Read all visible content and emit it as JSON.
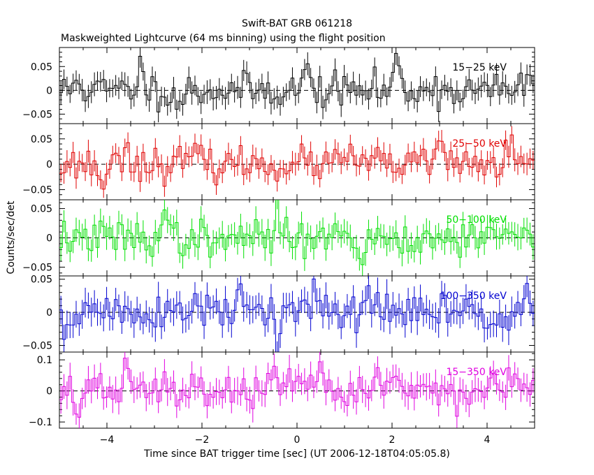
{
  "title": "Swift-BAT GRB 061218",
  "subtitle": "Maskweighted Lightcurve (64 ms binning) using the flight position",
  "ylabel": "Counts/sec/det",
  "xlabel": "Time since BAT trigger time [sec] (UT 2006-12-18T04:05:05.8)",
  "chart_data": {
    "type": "line",
    "title": "Swift-BAT GRB 061218",
    "subtitle": "Maskweighted Lightcurve (64 ms binning) using the flight position",
    "xlabel": "Time since BAT trigger time [sec] (UT 2006-12-18T04:05:05.8)",
    "ylabel": "Counts/sec/det",
    "xlim": [
      -5,
      5
    ],
    "x_ticks": [
      -4,
      -2,
      0,
      2,
      4
    ],
    "x_tick_labels": [
      "−4",
      "−2",
      "0",
      "2",
      "4"
    ],
    "bin_width_sec": 0.064,
    "series": [
      {
        "name": "15−25 keV",
        "color": "#000000",
        "ylim": [
          -0.07,
          0.09
        ],
        "y_ticks": [
          -0.05,
          0,
          0.05
        ],
        "y_tick_labels": [
          "−0.05",
          "0",
          "0.05"
        ],
        "amplitude": 0.018,
        "error": 0.022,
        "features": [
          [
            0.2,
            0.045
          ],
          [
            2.1,
            0.06
          ],
          [
            2.6,
            0.05
          ],
          [
            -3.3,
            0.05
          ],
          [
            -4.6,
            0.03
          ],
          [
            4.9,
            0.04
          ],
          [
            2.55,
            -0.04
          ],
          [
            -2.5,
            -0.03
          ]
        ],
        "seed": 11
      },
      {
        "name": "25−50 keV",
        "color": "#e00000",
        "ylim": [
          -0.07,
          0.08
        ],
        "y_ticks": [
          -0.05,
          0,
          0.05
        ],
        "y_tick_labels": [
          "−0.05",
          "0",
          "0.05"
        ],
        "amplitude": 0.016,
        "error": 0.02,
        "features": [
          [
            -3.6,
            0.05
          ],
          [
            3.0,
            0.05
          ],
          [
            -4.1,
            -0.035
          ],
          [
            -2.2,
            0.03
          ],
          [
            1.1,
            0.03
          ],
          [
            4.5,
            0.03
          ]
        ],
        "seed": 23
      },
      {
        "name": "50−100 keV",
        "color": "#00e000",
        "ylim": [
          -0.065,
          0.065
        ],
        "y_ticks": [
          -0.05,
          0,
          0.05
        ],
        "y_tick_labels": [
          "−0.05",
          "0",
          "0.05"
        ],
        "amplitude": 0.015,
        "error": 0.02,
        "features": [
          [
            -2.8,
            0.04
          ],
          [
            4.1,
            0.04
          ],
          [
            -0.4,
            0.035
          ],
          [
            1.35,
            -0.035
          ],
          [
            -1.8,
            -0.03
          ],
          [
            0.5,
            0.03
          ]
        ],
        "seed": 37
      },
      {
        "name": "100−350 keV",
        "color": "#0000d0",
        "ylim": [
          -0.06,
          0.055
        ],
        "y_ticks": [
          -0.05,
          0,
          0.05
        ],
        "y_tick_labels": [
          "−0.05",
          "0",
          "0.05"
        ],
        "amplitude": 0.015,
        "error": 0.02,
        "features": [
          [
            4.8,
            0.04
          ],
          [
            -0.4,
            -0.045
          ],
          [
            -4.9,
            -0.03
          ],
          [
            -1.2,
            0.03
          ],
          [
            0.4,
            0.03
          ],
          [
            1.5,
            0.025
          ]
        ],
        "seed": 51
      },
      {
        "name": "15−350 keV",
        "color": "#e000e0",
        "ylim": [
          -0.12,
          0.125
        ],
        "y_ticks": [
          -0.1,
          0,
          0.1
        ],
        "y_tick_labels": [
          "−0.1",
          "0",
          "0.1"
        ],
        "amplitude": 0.028,
        "error": 0.04,
        "features": [
          [
            1.7,
            0.07
          ],
          [
            2.0,
            0.06
          ],
          [
            -3.6,
            0.06
          ],
          [
            0.5,
            0.05
          ],
          [
            4.8,
            0.05
          ],
          [
            -4.6,
            -0.05
          ],
          [
            -0.5,
            0.04
          ]
        ],
        "seed": 67
      }
    ]
  }
}
